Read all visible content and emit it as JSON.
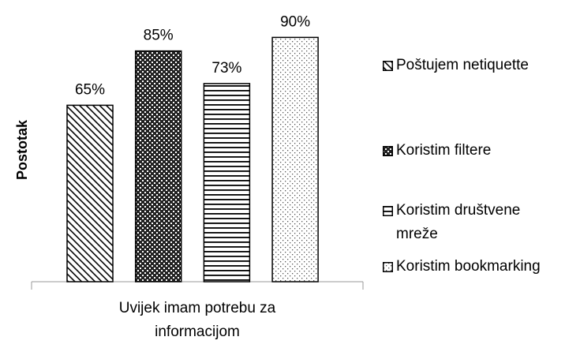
{
  "chart_data": {
    "type": "bar",
    "y_label": "Postotak",
    "categories": [
      "Uvijek imam potrebu za informacijom"
    ],
    "ylim": [
      0,
      100
    ],
    "series": [
      {
        "name": "Poštujem netiquette",
        "color": "#000000",
        "pattern": "diagonal",
        "values": [
          65
        ],
        "value_labels": [
          "65%"
        ]
      },
      {
        "name": "Koristim filtere",
        "color": "#000000",
        "pattern": "checker",
        "values": [
          85
        ],
        "value_labels": [
          "85%"
        ]
      },
      {
        "name": "Koristim društvene mreže",
        "color": "#000000",
        "pattern": "horizontal",
        "values": [
          73
        ],
        "value_labels": [
          "73%"
        ]
      },
      {
        "name": "Koristim bookmarking",
        "color": "#000000",
        "pattern": "dotted",
        "values": [
          90
        ],
        "value_labels": [
          "90%"
        ]
      }
    ]
  }
}
